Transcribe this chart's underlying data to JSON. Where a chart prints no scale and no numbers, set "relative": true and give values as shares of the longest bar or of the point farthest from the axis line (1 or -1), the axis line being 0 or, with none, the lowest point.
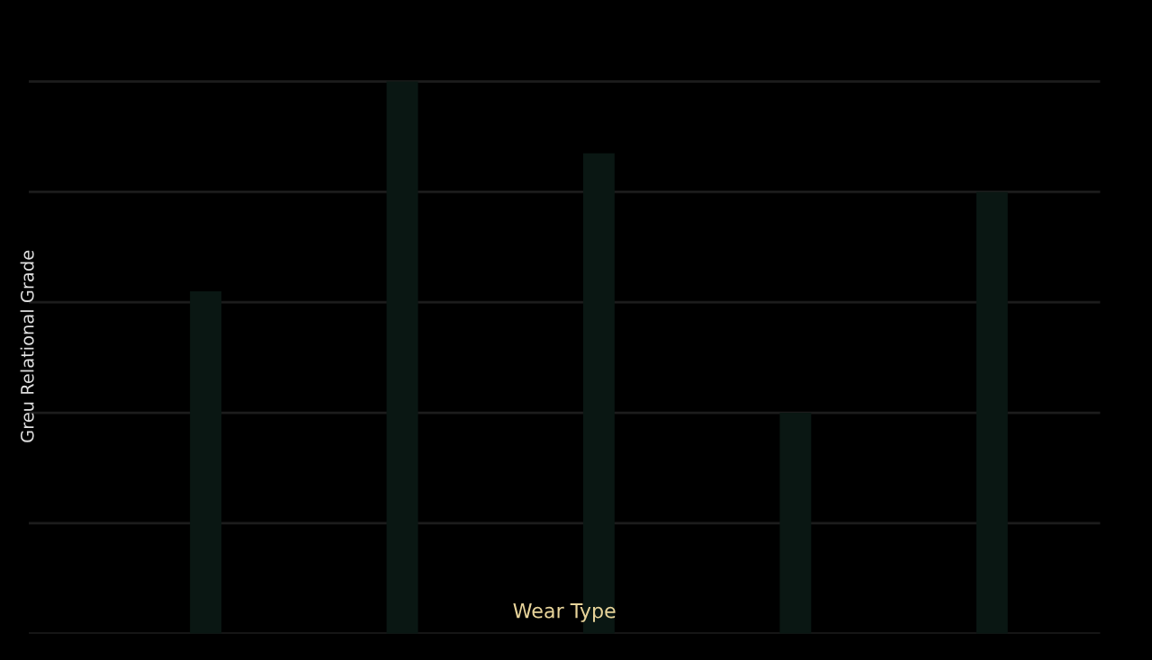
{
  "chart_data": {
    "type": "bar",
    "relative": true,
    "xlabel": "Wear Type",
    "ylabel": "Greu Relational Grade",
    "categories": [
      null,
      null,
      null,
      null,
      null
    ],
    "values": [
      0.62,
      1,
      0.87,
      0.4,
      0.8
    ],
    "color": "#0a1713",
    "grid": "y"
  }
}
